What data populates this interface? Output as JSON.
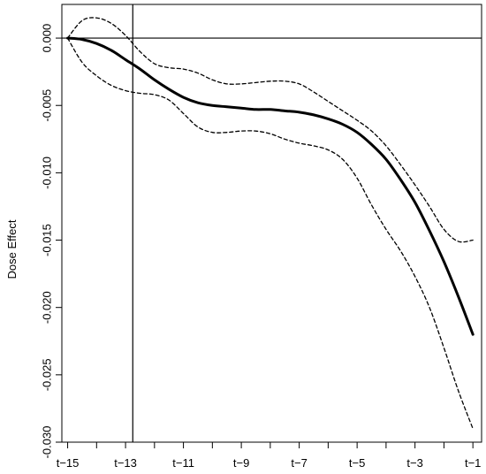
{
  "chart_data": {
    "type": "line",
    "title": "",
    "xlabel": "",
    "ylabel": "Dose Effect",
    "x_ticks": [
      {
        "x": 15,
        "label": "t−15"
      },
      {
        "x": 13,
        "label": "t−13"
      },
      {
        "x": 11,
        "label": "t−11"
      },
      {
        "x": 9,
        "label": "t−9"
      },
      {
        "x": 7,
        "label": "t−7"
      },
      {
        "x": 5,
        "label": "t−5"
      },
      {
        "x": 3,
        "label": "t−3"
      },
      {
        "x": 1,
        "label": "t−1"
      }
    ],
    "y_ticks": [
      {
        "y": 0.0,
        "label": "0.000"
      },
      {
        "y": -0.005,
        "label": "-0.005"
      },
      {
        "y": -0.01,
        "label": "-0.010"
      },
      {
        "y": -0.015,
        "label": "-0.015"
      },
      {
        "y": -0.02,
        "label": "-0.020"
      },
      {
        "y": -0.025,
        "label": "-0.025"
      },
      {
        "y": -0.03,
        "label": "-0.030"
      }
    ],
    "xlim": [
      15.2,
      0.7
    ],
    "ylim": [
      -0.03,
      0.0025
    ],
    "reference_lines": {
      "horizontal_y": 0.0,
      "vertical_x": 12.75
    },
    "series": [
      {
        "style": "solid",
        "x": [
          15,
          14.5,
          14,
          13.5,
          13,
          12.5,
          12,
          11.5,
          11,
          10.5,
          10,
          9.5,
          9,
          8.5,
          8,
          7.5,
          7,
          6.5,
          6,
          5.5,
          5,
          4.5,
          4,
          3.5,
          3,
          2.5,
          2,
          1.5,
          1
        ],
        "y": [
          0.0,
          -0.0001,
          -0.0004,
          -0.0009,
          -0.0016,
          -0.0023,
          -0.0031,
          -0.0038,
          -0.0044,
          -0.0048,
          -0.005,
          -0.0051,
          -0.0052,
          -0.0053,
          -0.0053,
          -0.0054,
          -0.0055,
          -0.0057,
          -0.006,
          -0.0064,
          -0.007,
          -0.0079,
          -0.009,
          -0.0105,
          -0.0122,
          -0.0143,
          -0.0166,
          -0.0192,
          -0.022
        ]
      },
      {
        "style": "dashed",
        "x": [
          15,
          14.5,
          14,
          13.5,
          13,
          12.5,
          12,
          11.5,
          11,
          10.5,
          10,
          9.5,
          9,
          8.5,
          8,
          7.5,
          7,
          6.5,
          6,
          5.5,
          5,
          4.5,
          4,
          3.5,
          3,
          2.5,
          2,
          1.5,
          1
        ],
        "y": [
          0.0,
          0.0013,
          0.0015,
          0.0011,
          0.0002,
          -0.001,
          -0.0019,
          -0.0022,
          -0.0023,
          -0.0026,
          -0.0031,
          -0.0034,
          -0.0034,
          -0.0033,
          -0.0032,
          -0.0032,
          -0.0034,
          -0.004,
          -0.0047,
          -0.0054,
          -0.0061,
          -0.0069,
          -0.008,
          -0.0094,
          -0.0109,
          -0.0125,
          -0.0142,
          -0.0151,
          -0.015
        ]
      },
      {
        "style": "dashed",
        "x": [
          15,
          14.5,
          14,
          13.5,
          13,
          12.5,
          12,
          11.5,
          11,
          10.5,
          10,
          9.5,
          9,
          8.5,
          8,
          7.5,
          7,
          6.5,
          6,
          5.5,
          5,
          4.5,
          4,
          3.5,
          3,
          2.5,
          2,
          1.5,
          1
        ],
        "y": [
          0.0,
          -0.0018,
          -0.0028,
          -0.0035,
          -0.0039,
          -0.0041,
          -0.0042,
          -0.0046,
          -0.0056,
          -0.0066,
          -0.007,
          -0.007,
          -0.0069,
          -0.0069,
          -0.0071,
          -0.0075,
          -0.0078,
          -0.008,
          -0.0083,
          -0.009,
          -0.0104,
          -0.0124,
          -0.0142,
          -0.0158,
          -0.0177,
          -0.02,
          -0.023,
          -0.0262,
          -0.029
        ]
      }
    ]
  }
}
